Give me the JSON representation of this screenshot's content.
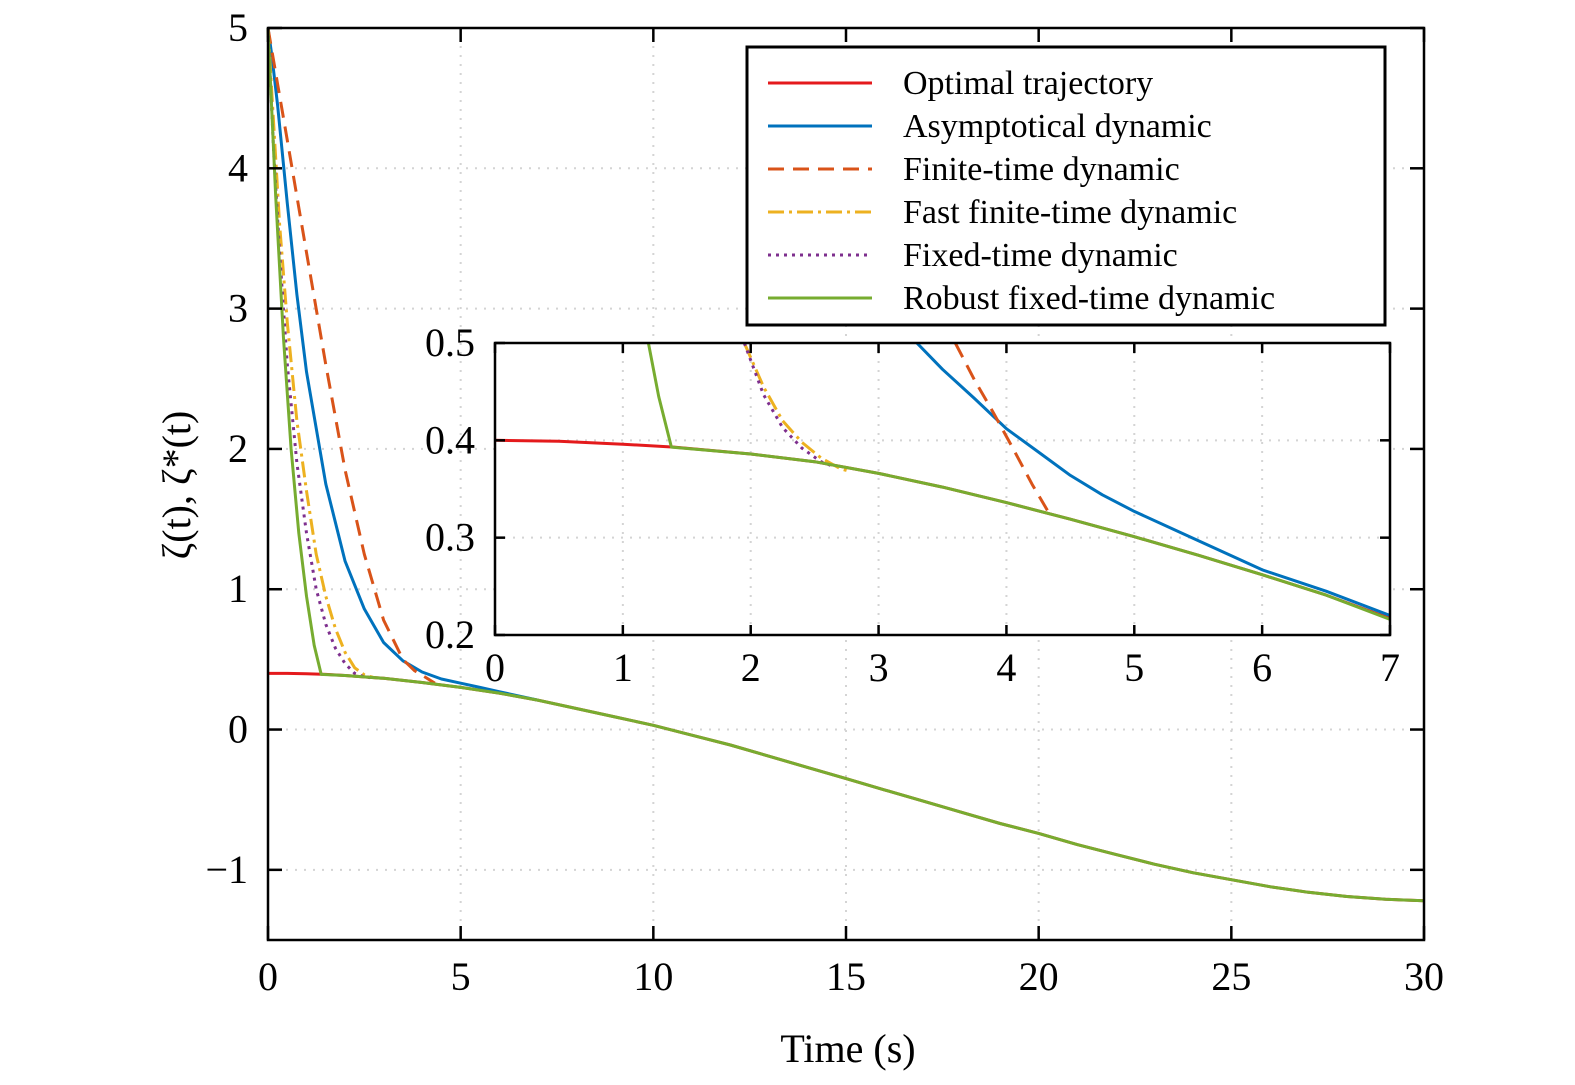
{
  "chart_data": [
    {
      "id": "main",
      "type": "line",
      "title": "",
      "xlabel": "Time (s)",
      "ylabel": "ζ(t), ζ*(t)",
      "xlim": [
        0,
        30
      ],
      "ylim": [
        -1.5,
        5
      ],
      "xticks": [
        0,
        5,
        10,
        15,
        20,
        25,
        30
      ],
      "yticks": [
        -1,
        0,
        1,
        2,
        3,
        4,
        5
      ],
      "ytick_labels": [
        "−1",
        "0",
        "1",
        "2",
        "3",
        "4",
        "5"
      ],
      "grid": true,
      "legend_position": "top-right",
      "series": [
        {
          "name": "Optimal trajectory",
          "color": "#e41a1c",
          "dash": "solid",
          "x": [
            0,
            0.5,
            1,
            1.5,
            2,
            3,
            4,
            5,
            6,
            7,
            8,
            9,
            10,
            11,
            12,
            13,
            14,
            15,
            16,
            17,
            18,
            19,
            20,
            21,
            22,
            23,
            24,
            25,
            26,
            27,
            28,
            29,
            30
          ],
          "y": [
            0.4,
            0.4,
            0.398,
            0.393,
            0.385,
            0.365,
            0.335,
            0.3,
            0.26,
            0.21,
            0.15,
            0.09,
            0.03,
            -0.04,
            -0.11,
            -0.19,
            -0.27,
            -0.35,
            -0.43,
            -0.51,
            -0.59,
            -0.67,
            -0.74,
            -0.82,
            -0.89,
            -0.96,
            -1.02,
            -1.07,
            -1.12,
            -1.16,
            -1.19,
            -1.21,
            -1.22
          ]
        },
        {
          "name": "Asymptotical dynamic",
          "color": "#0072bd",
          "dash": "solid",
          "x": [
            0,
            0.1,
            0.25,
            0.5,
            0.75,
            1,
            1.5,
            2,
            2.5,
            3,
            3.5,
            4,
            4.5,
            5,
            5.5,
            6,
            7
          ],
          "y": [
            5.0,
            4.8,
            4.45,
            3.75,
            3.1,
            2.55,
            1.75,
            1.2,
            0.86,
            0.62,
            0.49,
            0.41,
            0.36,
            0.33,
            0.3,
            0.27,
            0.21
          ]
        },
        {
          "name": "Finite-time dynamic",
          "color": "#d95319",
          "dash": "dashed",
          "x": [
            0,
            0.25,
            0.5,
            0.75,
            1,
            1.5,
            2,
            2.5,
            3,
            3.5,
            3.8,
            4.1,
            4.33
          ],
          "y": [
            5.0,
            4.6,
            4.2,
            3.8,
            3.4,
            2.6,
            1.85,
            1.25,
            0.78,
            0.5,
            0.42,
            0.37,
            0.33
          ]
        },
        {
          "name": "Fast finite-time dynamic",
          "color": "#edb120",
          "dash": "dashdot",
          "x": [
            0,
            0.15,
            0.3,
            0.5,
            0.75,
            1,
            1.25,
            1.5,
            1.75,
            2,
            2.25,
            2.5,
            2.75
          ],
          "y": [
            5.0,
            4.3,
            3.6,
            2.9,
            2.2,
            1.7,
            1.25,
            0.95,
            0.72,
            0.55,
            0.44,
            0.39,
            0.37
          ]
        },
        {
          "name": "Fixed-time dynamic",
          "color": "#7e2f8e",
          "dash": "dotted",
          "x": [
            0,
            0.15,
            0.3,
            0.5,
            0.75,
            1,
            1.25,
            1.5,
            1.75,
            2,
            2.25,
            2.5,
            2.65
          ],
          "y": [
            5.0,
            4.1,
            3.4,
            2.6,
            1.9,
            1.4,
            1.0,
            0.75,
            0.58,
            0.47,
            0.4,
            0.375,
            0.37
          ]
        },
        {
          "name": "Robust fixed-time dynamic",
          "color": "#77ac30",
          "dash": "solid",
          "x": [
            0,
            0.2,
            0.4,
            0.6,
            0.8,
            1,
            1.2,
            1.38,
            2,
            3,
            4,
            5,
            6,
            7,
            8,
            9,
            10,
            11,
            12,
            13,
            14,
            15,
            16,
            17,
            18,
            19,
            20,
            21,
            22,
            23,
            24,
            25,
            26,
            27,
            28,
            29,
            30
          ],
          "y": [
            5.0,
            3.8,
            2.8,
            2.0,
            1.4,
            0.95,
            0.6,
            0.393,
            0.385,
            0.365,
            0.335,
            0.3,
            0.26,
            0.21,
            0.15,
            0.09,
            0.03,
            -0.04,
            -0.11,
            -0.19,
            -0.27,
            -0.35,
            -0.43,
            -0.51,
            -0.59,
            -0.67,
            -0.74,
            -0.82,
            -0.89,
            -0.96,
            -1.02,
            -1.07,
            -1.12,
            -1.16,
            -1.19,
            -1.21,
            -1.22
          ]
        }
      ]
    },
    {
      "id": "inset",
      "type": "line",
      "title": "",
      "xlabel": "",
      "ylabel": "",
      "xlim": [
        0,
        7
      ],
      "ylim": [
        0.2,
        0.5
      ],
      "xticks": [
        0,
        1,
        2,
        3,
        4,
        5,
        6,
        7
      ],
      "yticks": [
        0.2,
        0.3,
        0.4,
        0.5
      ],
      "ytick_labels": [
        "0.2",
        "0.3",
        "0.4",
        "0.5"
      ],
      "grid": true,
      "series": [
        {
          "name": "Optimal trajectory",
          "color": "#e41a1c",
          "dash": "solid",
          "x": [
            0,
            0.5,
            1,
            1.4,
            2,
            2.5,
            3,
            3.5,
            4,
            4.5,
            5,
            5.5,
            6,
            6.5,
            7
          ],
          "y": [
            0.4,
            0.399,
            0.396,
            0.393,
            0.386,
            0.378,
            0.366,
            0.352,
            0.336,
            0.319,
            0.301,
            0.282,
            0.262,
            0.241,
            0.217
          ]
        },
        {
          "name": "Asymptotical dynamic",
          "color": "#0072bd",
          "dash": "solid",
          "x": [
            3.3,
            3.5,
            3.75,
            4,
            4.25,
            4.5,
            4.75,
            5,
            5.5,
            6,
            6.5,
            7
          ],
          "y": [
            0.5,
            0.473,
            0.443,
            0.412,
            0.388,
            0.364,
            0.344,
            0.327,
            0.297,
            0.267,
            0.245,
            0.22
          ]
        },
        {
          "name": "Finite-time dynamic",
          "color": "#d95319",
          "dash": "dashed",
          "x": [
            3.6,
            3.75,
            3.9,
            4.05,
            4.2,
            4.33
          ],
          "y": [
            0.5,
            0.462,
            0.428,
            0.392,
            0.355,
            0.326
          ]
        },
        {
          "name": "Fast finite-time dynamic",
          "color": "#edb120",
          "dash": "dashdot",
          "x": [
            1.95,
            2.1,
            2.25,
            2.4,
            2.55,
            2.7,
            2.75
          ],
          "y": [
            0.5,
            0.455,
            0.42,
            0.398,
            0.382,
            0.371,
            0.369
          ]
        },
        {
          "name": "Fixed-time dynamic",
          "color": "#7e2f8e",
          "dash": "dotted",
          "x": [
            1.95,
            2.1,
            2.25,
            2.4,
            2.55,
            2.65
          ],
          "y": [
            0.5,
            0.447,
            0.413,
            0.392,
            0.378,
            0.373
          ]
        },
        {
          "name": "Robust fixed-time dynamic",
          "color": "#77ac30",
          "dash": "solid",
          "x": [
            1.2,
            1.28,
            1.38,
            2,
            2.5,
            3,
            3.5,
            4,
            4.5,
            5,
            5.5,
            6,
            6.5,
            7
          ],
          "y": [
            0.5,
            0.445,
            0.393,
            0.386,
            0.378,
            0.366,
            0.352,
            0.336,
            0.319,
            0.301,
            0.282,
            0.262,
            0.241,
            0.216
          ]
        }
      ]
    }
  ]
}
